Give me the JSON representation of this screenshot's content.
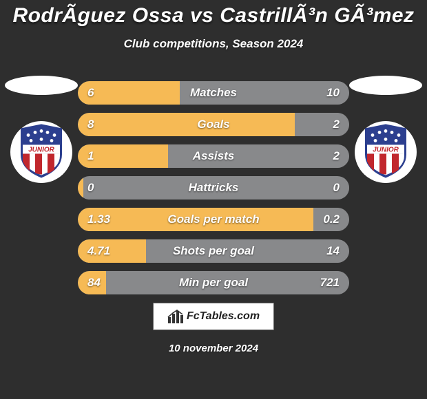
{
  "theme": {
    "background_color": "#2e2e2e",
    "text_color": "#ffffff",
    "bar_track_color": "#88898b",
    "bar_left_fill": "#f6ba55",
    "bar_right_fill": "#88898b",
    "title_fontsize": 30,
    "subtitle_fontsize": 17,
    "bar_label_fontsize": 17,
    "bar_value_fontsize": 17,
    "date_fontsize": 15,
    "watermark_fontsize": 16
  },
  "header": {
    "title": "RodrÃ­guez Ossa vs CastrillÃ³n GÃ³mez",
    "subtitle": "Club competitions, Season 2024"
  },
  "crest": {
    "banner_text": "JUNIOR",
    "shield_blue": "#2c3f8f",
    "shield_red": "#c1272d",
    "shield_white": "#ffffff",
    "star_white": "#ffffff"
  },
  "stats": [
    {
      "label": "Matches",
      "left_text": "6",
      "right_text": "10",
      "left_pct": 37.5,
      "right_pct": 62.5
    },
    {
      "label": "Goals",
      "left_text": "8",
      "right_text": "2",
      "left_pct": 80.0,
      "right_pct": 20.0
    },
    {
      "label": "Assists",
      "left_text": "1",
      "right_text": "2",
      "left_pct": 33.3,
      "right_pct": 66.7
    },
    {
      "label": "Hattricks",
      "left_text": "0",
      "right_text": "0",
      "left_pct": 2.0,
      "right_pct": 2.0
    },
    {
      "label": "Goals per match",
      "left_text": "1.33",
      "right_text": "0.2",
      "left_pct": 86.9,
      "right_pct": 13.1
    },
    {
      "label": "Shots per goal",
      "left_text": "4.71",
      "right_text": "14",
      "left_pct": 25.2,
      "right_pct": 74.8
    },
    {
      "label": "Min per goal",
      "left_text": "84",
      "right_text": "721",
      "left_pct": 10.4,
      "right_pct": 89.6
    }
  ],
  "watermark": {
    "text": "FcTables.com"
  },
  "footer": {
    "date": "10 november 2024"
  }
}
